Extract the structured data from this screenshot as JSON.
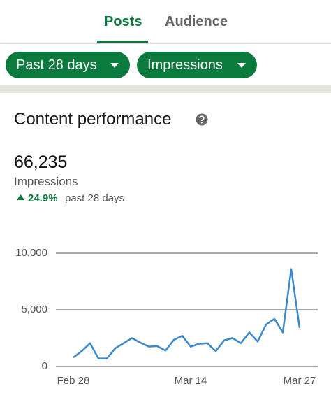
{
  "tabs": [
    "Posts",
    "Audience"
  ],
  "filters": [
    "Past 28 days",
    "Impressions"
  ],
  "section": {
    "title": "Content performance",
    "total": "66,235",
    "metric": "Impressions",
    "change": "24.9%",
    "period": "past 28 days"
  },
  "chart_data": {
    "type": "line",
    "categories": [
      "Feb 28",
      null,
      null,
      null,
      null,
      null,
      null,
      null,
      null,
      null,
      null,
      null,
      null,
      null,
      "Mar 14",
      null,
      null,
      null,
      null,
      null,
      null,
      null,
      null,
      null,
      null,
      null,
      null,
      "Mar 27"
    ],
    "values": [
      800,
      1350,
      2050,
      700,
      700,
      1600,
      2050,
      2500,
      2100,
      1750,
      1800,
      1400,
      2350,
      2700,
      1750,
      2000,
      2050,
      1350,
      2300,
      2500,
      2050,
      3000,
      2200,
      3700,
      4200,
      3000,
      8600,
      3400
    ],
    "color": "#3c88cf",
    "ylim": [
      0,
      10000
    ],
    "yticks": [
      0,
      {
        "value": 5000,
        "label": "5,000"
      },
      {
        "value": 10000,
        "label": "10,000"
      }
    ],
    "grid": true
  }
}
